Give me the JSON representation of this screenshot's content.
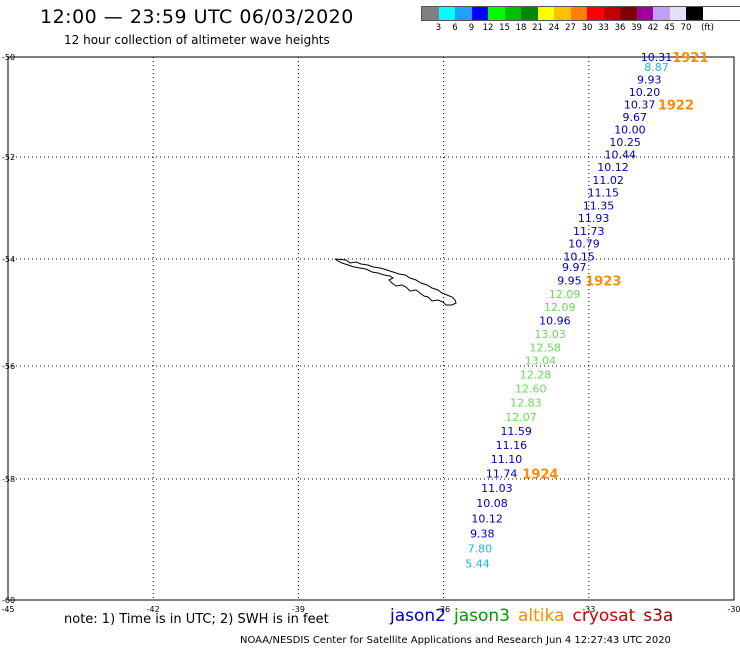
{
  "header": {
    "title": "12:00 — 23:59 UTC 06/03/2020",
    "subtitle": "12 hour collection of altimeter wave heights"
  },
  "color_scale": {
    "colors": [
      "#808080",
      "#00ffff",
      "#1ea0ff",
      "#0000ff",
      "#00ff00",
      "#00c000",
      "#008800",
      "#ffff00",
      "#ffc000",
      "#ff8000",
      "#ff0000",
      "#c00000",
      "#800000",
      "#a000a0",
      "#c0a0ff",
      "#e0e0ff",
      "#000000"
    ],
    "labels": [
      "3",
      "6",
      "9",
      "12",
      "15",
      "18",
      "21",
      "24",
      "27",
      "30",
      "33",
      "36",
      "39",
      "42",
      "45",
      "70",
      "(ft)"
    ]
  },
  "axes": {
    "x_ticks": [
      "-45",
      "-42",
      "-39",
      "-36",
      "-33",
      "-30"
    ],
    "y_ticks": [
      "-50",
      "-52",
      "-54",
      "-56",
      "-58",
      "-60"
    ]
  },
  "map_data": {
    "lon_range": [
      -45,
      -30
    ],
    "lat_range": [
      -60,
      -50
    ],
    "swh_points": [
      {
        "lat": -50.0,
        "lon": -31.6,
        "value": "10.31",
        "color": "#0000c0"
      },
      {
        "lat": -50.2,
        "lon": -31.6,
        "value": "8.87",
        "color": "#19b8e0"
      },
      {
        "lat": -50.45,
        "lon": -31.75,
        "value": "9.93",
        "color": "#0000c0"
      },
      {
        "lat": -50.7,
        "lon": -31.85,
        "value": "10.20",
        "color": "#0000c0"
      },
      {
        "lat": -50.95,
        "lon": -31.95,
        "value": "10.37",
        "color": "#0000c0"
      },
      {
        "lat": -51.2,
        "lon": -32.05,
        "value": "9.67",
        "color": "#0000c0"
      },
      {
        "lat": -51.45,
        "lon": -32.15,
        "value": "10.00",
        "color": "#0000c0"
      },
      {
        "lat": -51.7,
        "lon": -32.25,
        "value": "10.25",
        "color": "#0000c0"
      },
      {
        "lat": -51.95,
        "lon": -32.35,
        "value": "10.44",
        "color": "#0000c0"
      },
      {
        "lat": -52.2,
        "lon": -32.5,
        "value": "10.12",
        "color": "#0000c0"
      },
      {
        "lat": -52.45,
        "lon": -32.6,
        "value": "11.02",
        "color": "#0000c0"
      },
      {
        "lat": -52.7,
        "lon": -32.7,
        "value": "11.15",
        "color": "#0000c0"
      },
      {
        "lat": -52.95,
        "lon": -32.8,
        "value": "11.35",
        "color": "#0000c0"
      },
      {
        "lat": -53.2,
        "lon": -32.9,
        "value": "11.93",
        "color": "#0000c0"
      },
      {
        "lat": -53.45,
        "lon": -33.0,
        "value": "11.73",
        "color": "#0000c0"
      },
      {
        "lat": -53.7,
        "lon": -33.1,
        "value": "10.79",
        "color": "#0000c0"
      },
      {
        "lat": -53.95,
        "lon": -33.2,
        "value": "10.15",
        "color": "#0000c0"
      },
      {
        "lat": -54.15,
        "lon": -33.3,
        "value": "9.97",
        "color": "#0000c0"
      },
      {
        "lat": -54.4,
        "lon": -33.4,
        "value": "9.95",
        "color": "#0000c0"
      },
      {
        "lat": -54.65,
        "lon": -33.5,
        "value": "12.09",
        "color": "#66dd55"
      },
      {
        "lat": -54.9,
        "lon": -33.6,
        "value": "12.09",
        "color": "#66dd55"
      },
      {
        "lat": -55.15,
        "lon": -33.7,
        "value": "10.96",
        "color": "#0000c0"
      },
      {
        "lat": -55.4,
        "lon": -33.8,
        "value": "13.03",
        "color": "#66dd55"
      },
      {
        "lat": -55.65,
        "lon": -33.9,
        "value": "12.58",
        "color": "#66dd55"
      },
      {
        "lat": -55.9,
        "lon": -34.0,
        "value": "13.04",
        "color": "#66dd55"
      },
      {
        "lat": -56.15,
        "lon": -34.1,
        "value": "12.28",
        "color": "#66dd55"
      },
      {
        "lat": -56.4,
        "lon": -34.2,
        "value": "12.60",
        "color": "#66dd55"
      },
      {
        "lat": -56.65,
        "lon": -34.3,
        "value": "12.83",
        "color": "#66dd55"
      },
      {
        "lat": -56.9,
        "lon": -34.4,
        "value": "12.07",
        "color": "#66dd55"
      },
      {
        "lat": -57.15,
        "lon": -34.5,
        "value": "11.59",
        "color": "#0000c0"
      },
      {
        "lat": -57.4,
        "lon": -34.6,
        "value": "11.16",
        "color": "#0000c0"
      },
      {
        "lat": -57.65,
        "lon": -34.7,
        "value": "11.10",
        "color": "#0000c0"
      },
      {
        "lat": -57.9,
        "lon": -34.8,
        "value": "11.74",
        "color": "#0000c0"
      },
      {
        "lat": -58.15,
        "lon": -34.9,
        "value": "11.03",
        "color": "#0000c0"
      },
      {
        "lat": -58.4,
        "lon": -35.0,
        "value": "10.08",
        "color": "#0000c0"
      },
      {
        "lat": -58.65,
        "lon": -35.1,
        "value": "10.12",
        "color": "#0000c0"
      },
      {
        "lat": -58.9,
        "lon": -35.2,
        "value": "9.38",
        "color": "#0000c0"
      },
      {
        "lat": -59.15,
        "lon": -35.25,
        "value": "7.80",
        "color": "#19b8e0"
      },
      {
        "lat": -59.4,
        "lon": -35.3,
        "value": "5.44",
        "color": "#19b8e0"
      }
    ],
    "time_labels": [
      {
        "lat": -50.0,
        "lon": -30.9,
        "text": "1921"
      },
      {
        "lat": -50.95,
        "lon": -31.2,
        "text": "1922"
      },
      {
        "lat": -54.4,
        "lon": -32.7,
        "text": "1923"
      },
      {
        "lat": -57.9,
        "lon": -34.0,
        "text": "1924"
      }
    ],
    "time_label_color": "#ff8c00"
  },
  "footer": {
    "note": "note: 1) Time is in UTC; 2) SWH is in feet",
    "satellites": [
      {
        "name": "jason2",
        "color": "#0000c0"
      },
      {
        "name": "jason3",
        "color": "#009900"
      },
      {
        "name": "altika",
        "color": "#ff8c00"
      },
      {
        "name": "cryosat",
        "color": "#cc0000"
      },
      {
        "name": "s3a",
        "color": "#990000"
      }
    ],
    "credit": "NOAA/NESDIS Center for Satellite Applications and Research    Jun  4 12:27:43 UTC 2020"
  }
}
